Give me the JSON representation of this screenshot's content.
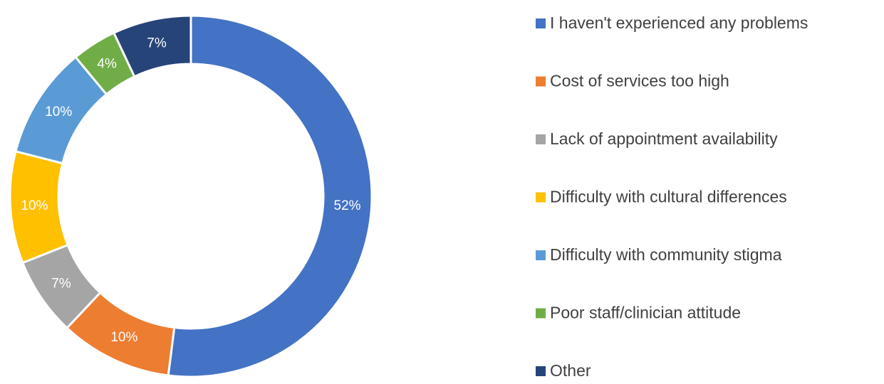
{
  "chart_data": {
    "type": "donut",
    "categories": [
      "I haven't experienced any problems",
      "Cost of services too high",
      "Lack of appointment availability",
      "Difficulty with cultural differences",
      "Difficulty with community stigma",
      "Poor staff/clinician attitude",
      "Other"
    ],
    "values": [
      52,
      10,
      7,
      10,
      10,
      4,
      7
    ],
    "value_labels": [
      "52%",
      "10%",
      "7%",
      "10%",
      "10%",
      "4%",
      "7%"
    ],
    "colors": [
      "#4472c4",
      "#ed7d31",
      "#a5a5a5",
      "#ffc000",
      "#5b9bd5",
      "#70ad47",
      "#264478"
    ],
    "legend": "right"
  }
}
